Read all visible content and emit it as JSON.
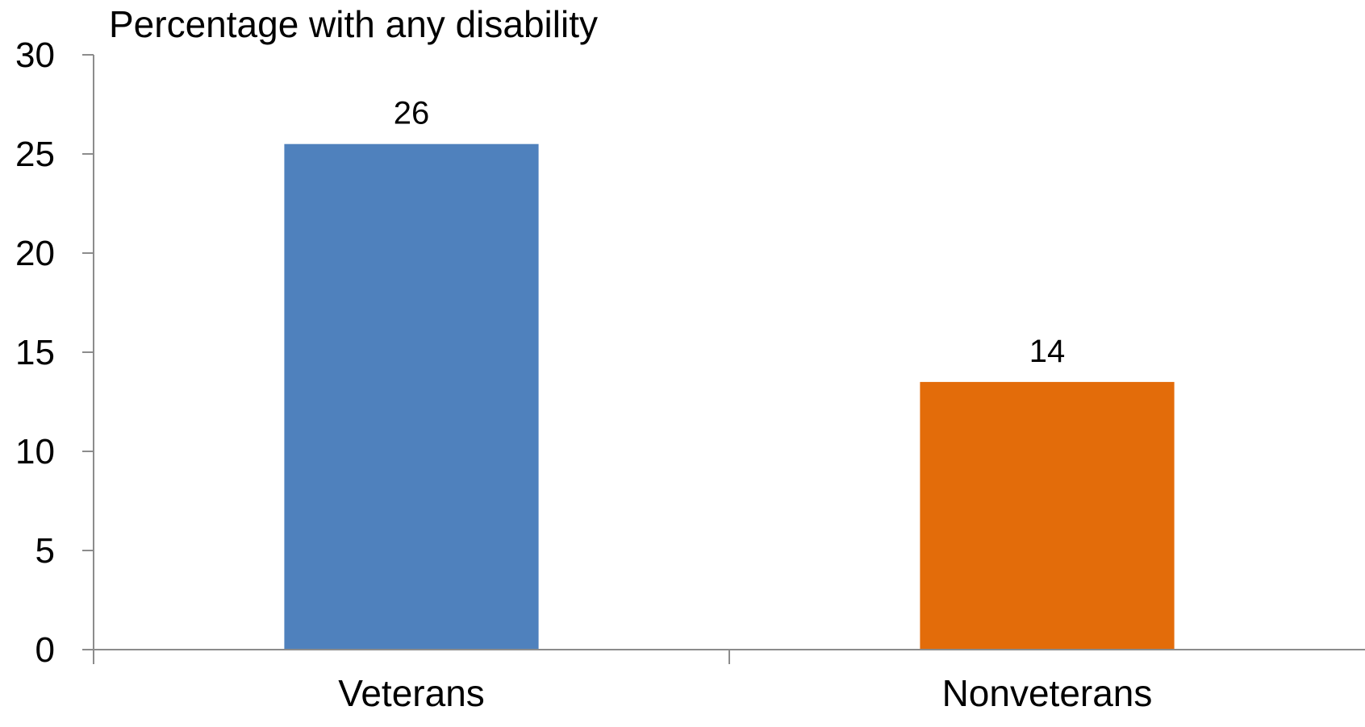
{
  "chart_data": {
    "type": "bar",
    "title": "",
    "ylabel": "Percentage with any disability",
    "xlabel": "",
    "categories": [
      "Veterans",
      "Nonveterans"
    ],
    "series": [
      {
        "values": [
          25.5,
          13.5
        ],
        "data_labels": [
          "26",
          "14"
        ],
        "colors": [
          "#4f81bd",
          "#e36c0a"
        ]
      }
    ],
    "ylim": [
      0,
      30
    ],
    "yticks": [
      0,
      5,
      10,
      15,
      20,
      25,
      30
    ],
    "ytick_labels": [
      "0",
      "5",
      "10",
      "15",
      "20",
      "25",
      "30"
    ],
    "grid": false,
    "legend": "none"
  }
}
